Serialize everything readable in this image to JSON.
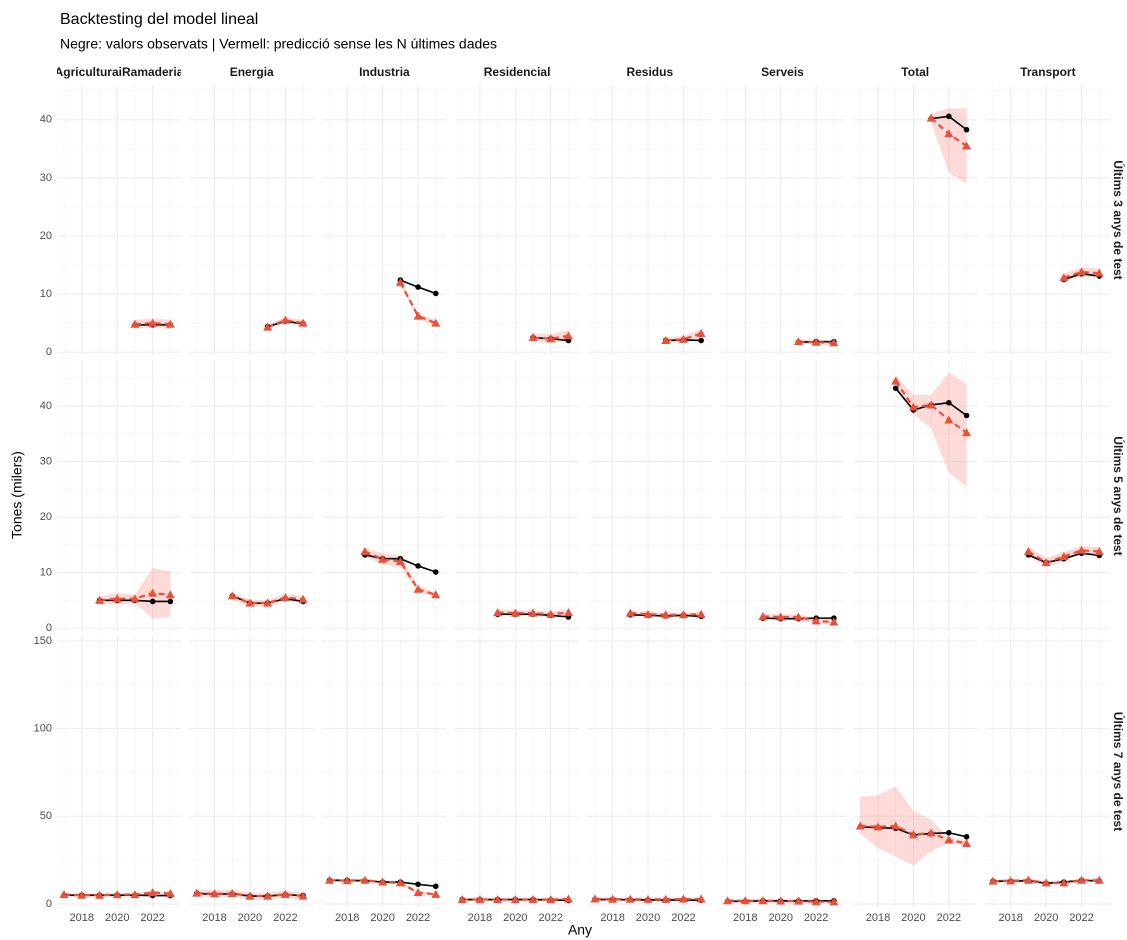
{
  "chart_data": {
    "type": "line",
    "title": "Backtesting del model lineal",
    "subtitle": "Negre: valors observats | Vermell: predicció sense les N últimes dades",
    "x_label": "Any",
    "y_label": "Tones (milers)",
    "columns": [
      "AgriculturaiRamaderia",
      "Energia",
      "Industria",
      "Residencial",
      "Residus",
      "Serveis",
      "Total",
      "Transport"
    ],
    "xlim": [
      2016.6,
      2023.6
    ],
    "xticks": [
      2018,
      2020,
      2022
    ],
    "grid": true,
    "minor_grid": true,
    "obs_color": "#000000",
    "pred_color": "#e8503a",
    "band_color": "#f4a39a",
    "rows": [
      {
        "name": "Últims 3 anys de test",
        "ylim": [
          -0.5,
          46
        ],
        "yticks": [
          0,
          10,
          20,
          30,
          40
        ],
        "x": [
          2021,
          2022,
          2023
        ],
        "panels": [
          {
            "obs": [
              4.7,
              4.7,
              4.7
            ],
            "pred": [
              4.8,
              5.0,
              4.8
            ],
            "lo": [
              4.1,
              4.2,
              4.0
            ],
            "hi": [
              5.5,
              5.8,
              5.6
            ]
          },
          {
            "obs": [
              4.4,
              5.3,
              4.9
            ],
            "pred": [
              4.3,
              5.5,
              5.0
            ],
            "lo": [
              3.9,
              5.0,
              4.5
            ],
            "hi": [
              4.7,
              6.0,
              5.5
            ]
          },
          {
            "obs": [
              12.4,
              11.2,
              10.1
            ],
            "pred": [
              12.0,
              6.2,
              5.0
            ],
            "lo": [
              11.5,
              5.7,
              4.5
            ],
            "hi": [
              12.5,
              6.7,
              5.5
            ]
          },
          {
            "obs": [
              2.5,
              2.3,
              2.0
            ],
            "pred": [
              2.5,
              2.3,
              2.8
            ],
            "lo": [
              1.8,
              1.6,
              1.8
            ],
            "hi": [
              3.2,
              3.1,
              3.8
            ]
          },
          {
            "obs": [
              2.0,
              2.1,
              2.0
            ],
            "pred": [
              2.0,
              2.2,
              3.2
            ],
            "lo": [
              1.5,
              1.6,
              2.5
            ],
            "hi": [
              2.5,
              2.8,
              3.9
            ]
          },
          {
            "obs": [
              1.7,
              1.8,
              1.8
            ],
            "pred": [
              1.8,
              1.7,
              1.6
            ],
            "lo": [
              1.4,
              1.3,
              1.2
            ],
            "hi": [
              2.2,
              2.1,
              2.0
            ]
          },
          {
            "obs": [
              40.2,
              40.6,
              38.3
            ],
            "pred": [
              40.3,
              37.6,
              35.5
            ],
            "lo": [
              39.5,
              31.0,
              29.0
            ],
            "hi": [
              41.0,
              42.0,
              42.0
            ]
          },
          {
            "obs": [
              12.5,
              13.5,
              13.1
            ],
            "pred": [
              12.8,
              13.8,
              13.6
            ],
            "lo": [
              12.1,
              13.0,
              12.8
            ],
            "hi": [
              13.5,
              14.6,
              14.4
            ]
          }
        ]
      },
      {
        "name": "Últims 5 anys de test",
        "ylim": [
          -0.7,
          48.3
        ],
        "yticks": [
          0,
          10,
          20,
          30,
          40
        ],
        "x": [
          2019,
          2020,
          2021,
          2022,
          2023
        ],
        "panels": [
          {
            "obs": [
              5.0,
              5.0,
              5.0,
              4.8,
              4.8
            ],
            "pred": [
              5.0,
              5.3,
              5.3,
              6.3,
              6.0
            ],
            "lo": [
              4.3,
              4.3,
              4.5,
              1.7,
              2.0
            ],
            "hi": [
              5.7,
              6.3,
              6.0,
              10.8,
              10.2
            ]
          },
          {
            "obs": [
              5.8,
              4.5,
              4.5,
              5.3,
              4.8
            ],
            "pred": [
              5.8,
              4.5,
              4.5,
              5.5,
              5.2
            ],
            "lo": [
              5.2,
              3.9,
              3.9,
              4.9,
              4.6
            ],
            "hi": [
              6.4,
              5.1,
              5.1,
              6.1,
              5.8
            ]
          },
          {
            "obs": [
              13.2,
              12.5,
              12.5,
              11.2,
              10.1
            ],
            "pred": [
              13.8,
              12.4,
              12.0,
              7.0,
              6.0
            ],
            "lo": [
              12.8,
              11.5,
              11.0,
              6.5,
              5.5
            ],
            "hi": [
              14.5,
              13.5,
              13.0,
              7.5,
              6.5
            ]
          },
          {
            "obs": [
              2.5,
              2.5,
              2.5,
              2.3,
              2.0
            ],
            "pred": [
              2.8,
              2.7,
              2.7,
              2.5,
              2.8
            ],
            "lo": [
              2.3,
              2.2,
              2.2,
              2.0,
              2.2
            ],
            "hi": [
              3.3,
              3.2,
              3.2,
              3.0,
              3.4
            ]
          },
          {
            "obs": [
              2.4,
              2.3,
              2.2,
              2.3,
              2.1
            ],
            "pred": [
              2.7,
              2.5,
              2.4,
              2.4,
              2.5
            ],
            "lo": [
              2.3,
              2.1,
              2.0,
              2.0,
              2.1
            ],
            "hi": [
              3.1,
              2.9,
              2.8,
              2.8,
              2.9
            ]
          },
          {
            "obs": [
              1.8,
              1.7,
              1.7,
              1.8,
              1.8
            ],
            "pred": [
              2.1,
              2.0,
              2.0,
              1.3,
              1.1
            ],
            "lo": [
              1.6,
              1.5,
              1.5,
              0.8,
              0.6
            ],
            "hi": [
              2.6,
              2.5,
              2.5,
              1.8,
              1.6
            ]
          },
          {
            "obs": [
              43.2,
              39.3,
              40.2,
              40.6,
              38.3
            ],
            "pred": [
              44.5,
              39.8,
              40.2,
              37.5,
              35.2
            ],
            "lo": [
              43.0,
              38.5,
              36.0,
              28.0,
              25.5
            ],
            "hi": [
              45.5,
              42.0,
              42.0,
              46.0,
              44.0
            ]
          },
          {
            "obs": [
              13.2,
              11.8,
              12.5,
              13.5,
              13.1
            ],
            "pred": [
              13.8,
              11.8,
              12.9,
              14.0,
              13.8
            ],
            "lo": [
              13.0,
              11.0,
              12.1,
              13.2,
              13.0
            ],
            "hi": [
              14.6,
              12.6,
              13.7,
              14.8,
              14.6
            ]
          }
        ]
      },
      {
        "name": "Últims 7 anys de test",
        "ylim": [
          -2.3,
          153.4
        ],
        "yticks": [
          0,
          50,
          100,
          150
        ],
        "x": [
          2017,
          2018,
          2019,
          2020,
          2021,
          2022,
          2023
        ],
        "panels": [
          {
            "obs": [
              5.0,
              5.0,
              5.0,
              5.0,
              5.0,
              4.8,
              4.8
            ],
            "pred": [
              5.3,
              5.0,
              5.0,
              5.3,
              5.3,
              6.5,
              6.0
            ],
            "lo": [
              4.3,
              4.0,
              4.0,
              4.3,
              4.3,
              5.5,
              5.0
            ],
            "hi": [
              6.3,
              6.0,
              6.0,
              6.3,
              6.3,
              7.5,
              7.0
            ]
          },
          {
            "obs": [
              6.0,
              5.5,
              5.8,
              4.5,
              4.5,
              5.3,
              4.8
            ],
            "pred": [
              6.2,
              5.8,
              6.0,
              4.5,
              4.5,
              5.5,
              4.5
            ],
            "lo": [
              4.2,
              3.8,
              4.0,
              2.5,
              2.5,
              3.5,
              2.5
            ],
            "hi": [
              8.2,
              7.8,
              8.0,
              6.5,
              6.5,
              7.5,
              6.5
            ]
          },
          {
            "obs": [
              13.5,
              13.5,
              13.2,
              12.5,
              12.5,
              11.2,
              10.1
            ],
            "pred": [
              13.5,
              13.3,
              13.5,
              12.5,
              12.0,
              6.5,
              5.5
            ],
            "lo": [
              12.5,
              12.3,
              12.5,
              11.5,
              11.0,
              5.5,
              4.5
            ],
            "hi": [
              14.5,
              14.3,
              14.5,
              13.5,
              13.0,
              7.5,
              6.5
            ]
          },
          {
            "obs": [
              2.5,
              2.5,
              2.5,
              2.5,
              2.5,
              2.3,
              2.0
            ],
            "pred": [
              2.5,
              2.5,
              2.5,
              2.5,
              2.5,
              2.5,
              2.8
            ],
            "lo": [
              1.5,
              1.5,
              1.5,
              1.5,
              1.5,
              1.5,
              1.8
            ],
            "hi": [
              3.5,
              3.5,
              3.5,
              3.5,
              3.5,
              3.5,
              3.8
            ]
          },
          {
            "obs": [
              2.5,
              2.5,
              2.4,
              2.3,
              2.2,
              2.3,
              2.1
            ],
            "pred": [
              2.8,
              2.7,
              2.7,
              2.6,
              2.6,
              2.8,
              2.8
            ],
            "lo": [
              1.8,
              1.7,
              1.7,
              1.6,
              1.6,
              1.8,
              1.8
            ],
            "hi": [
              3.8,
              3.7,
              3.7,
              3.6,
              3.6,
              3.8,
              3.8
            ]
          },
          {
            "obs": [
              1.5,
              1.5,
              1.8,
              1.7,
              1.7,
              1.8,
              1.8
            ],
            "pred": [
              1.8,
              1.8,
              1.8,
              1.7,
              1.6,
              1.3,
              1.2
            ],
            "lo": [
              0.8,
              0.8,
              0.8,
              0.7,
              0.6,
              0.3,
              0.2
            ],
            "hi": [
              2.8,
              2.8,
              2.8,
              2.7,
              2.6,
              2.3,
              2.2
            ]
          },
          {
            "obs": [
              44.0,
              43.5,
              43.2,
              39.3,
              40.2,
              40.6,
              38.3
            ],
            "pred": [
              44.5,
              44.0,
              44.5,
              39.5,
              40.5,
              36.5,
              34.5
            ],
            "lo": [
              40.0,
              32.0,
              27.0,
              22.0,
              30.0,
              35.0,
              33.0
            ],
            "hi": [
              61.0,
              62.0,
              67.0,
              53.0,
              48.0,
              38.0,
              36.0
            ]
          },
          {
            "obs": [
              13.0,
              13.0,
              13.2,
              11.8,
              12.5,
              13.5,
              13.1
            ],
            "pred": [
              13.0,
              13.2,
              13.5,
              12.0,
              12.0,
              13.5,
              13.5
            ],
            "lo": [
              12.0,
              12.2,
              12.5,
              11.0,
              11.0,
              12.5,
              12.5
            ],
            "hi": [
              14.0,
              14.2,
              14.5,
              13.0,
              13.0,
              14.5,
              14.5
            ]
          }
        ]
      }
    ]
  }
}
